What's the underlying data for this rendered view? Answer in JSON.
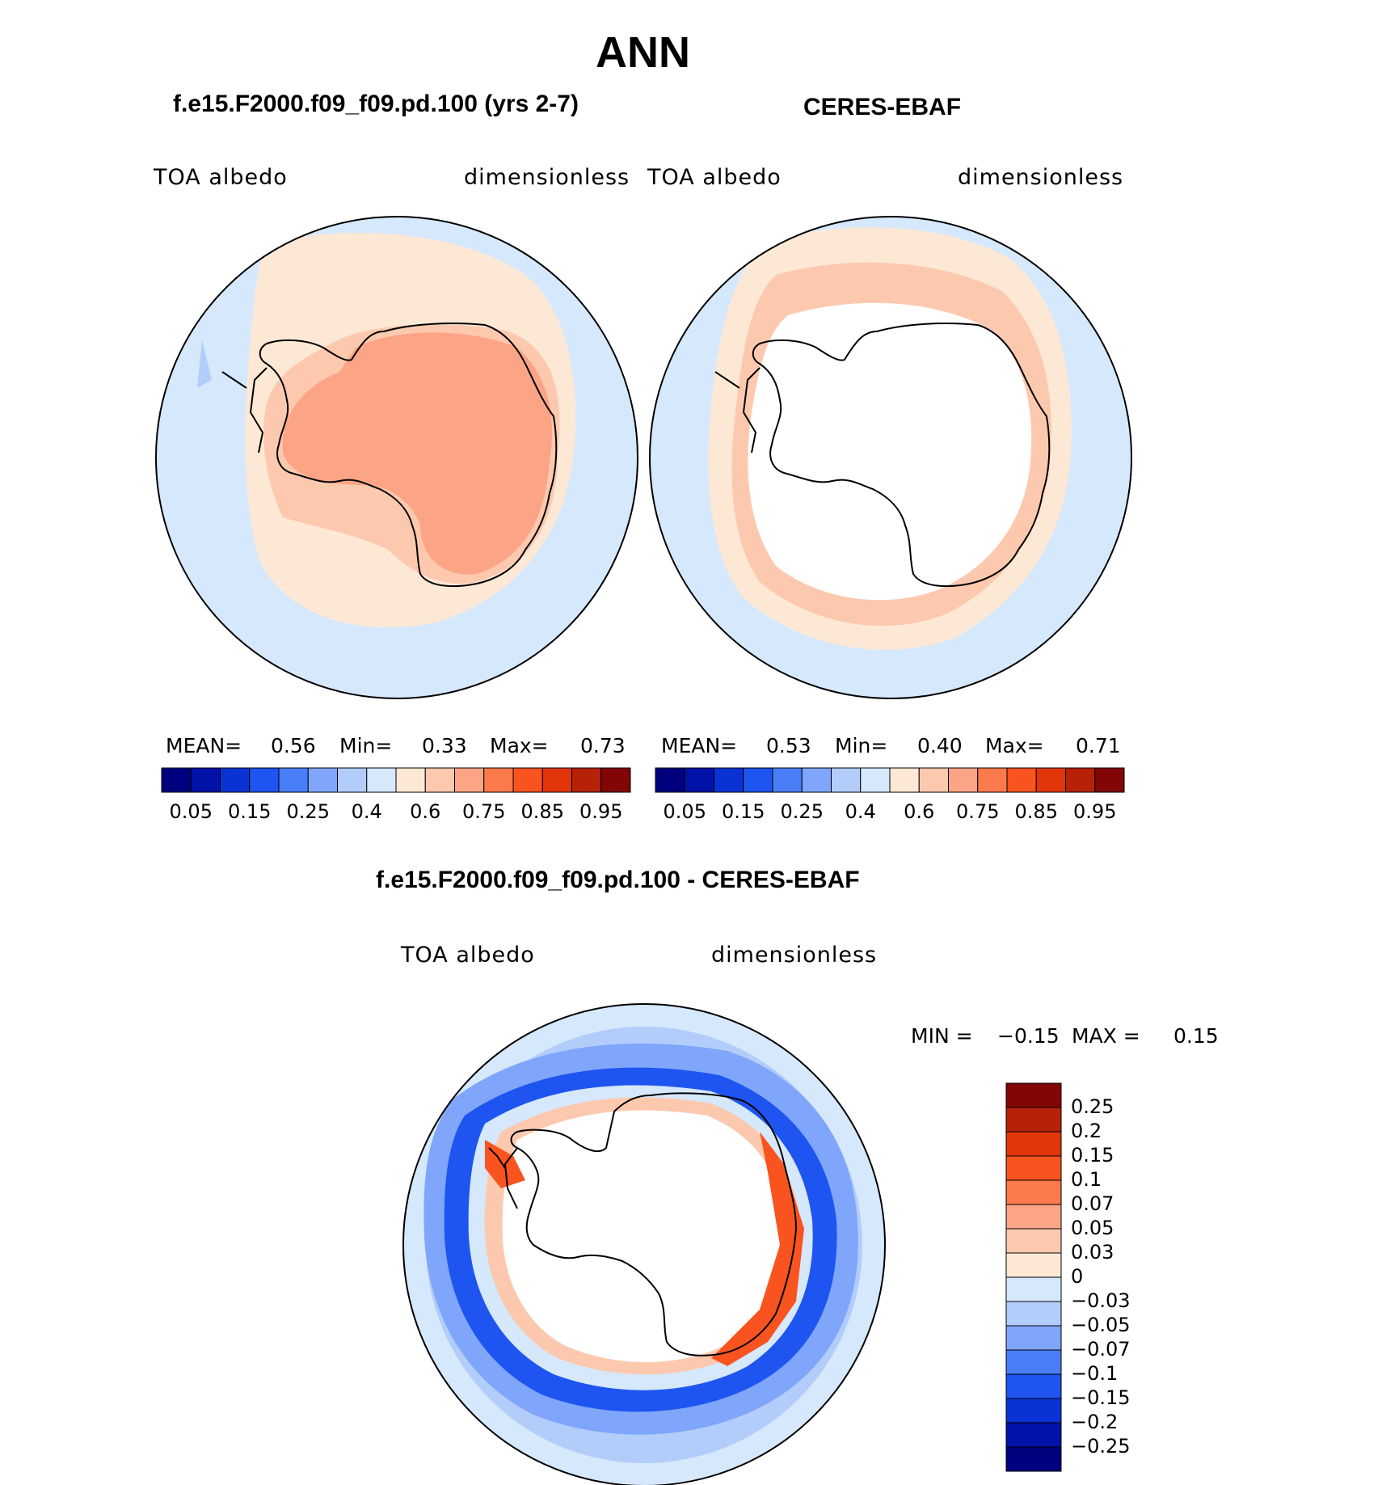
{
  "page": {
    "title": "ANN",
    "colors": {
      "ocean_low": "#d6e8fb",
      "land_outline": "#000000"
    }
  },
  "panels": [
    {
      "case_title": "f.e15.F2000.f09_f09.pd.100 (yrs 2-7)",
      "left_label": "TOA  albedo",
      "right_label": "dimensionless",
      "stats": {
        "mean_label": "MEAN=",
        "mean": "0.56",
        "min_label": "Min=",
        "min": "0.33",
        "max_label": "Max=",
        "max": "0.73"
      }
    },
    {
      "case_title": "CERES-EBAF",
      "left_label": "TOA  albedo",
      "right_label": "dimensionless",
      "stats": {
        "mean_label": "MEAN=",
        "mean": "0.53",
        "min_label": "Min=",
        "min": "0.40",
        "max_label": "Max=",
        "max": "0.71"
      }
    }
  ],
  "abs_colorbar": {
    "colors": [
      "#00007f",
      "#0012a8",
      "#0a33d6",
      "#1e55f0",
      "#4a7ef8",
      "#7fa6fb",
      "#b3cdfb",
      "#d6e8fb",
      "#fde8d6",
      "#fcc9af",
      "#fca586",
      "#fb7a4b",
      "#f9531f",
      "#e23509",
      "#b72107",
      "#830606"
    ],
    "tick_labels": [
      "0.05",
      "0.15",
      "0.25",
      "0.4",
      "0.6",
      "0.75",
      "0.85",
      "0.95"
    ]
  },
  "diff_panel": {
    "title": "f.e15.F2000.f09_f09.pd.100 - CERES-EBAF",
    "left_label": "TOA  albedo",
    "right_label": "dimensionless",
    "stats": {
      "min_label": "MIN  =",
      "min": "−0.15",
      "max_label": "MAX  =",
      "max": "0.15"
    }
  },
  "diff_colorbar": {
    "colors": [
      "#830606",
      "#b72107",
      "#e23509",
      "#f9531f",
      "#fb7a4b",
      "#fca586",
      "#fcc9af",
      "#fde8d6",
      "#d6e8fb",
      "#b3cdfb",
      "#7fa6fb",
      "#4a7ef8",
      "#1e55f0",
      "#0a33d6",
      "#0012a8",
      "#00007f"
    ],
    "tick_labels": [
      "0.25",
      "0.2",
      "0.15",
      "0.1",
      "0.07",
      "0.05",
      "0.03",
      "0",
      "−0.03",
      "−0.05",
      "−0.07",
      "−0.1",
      "−0.15",
      "−0.2",
      "−0.25"
    ]
  }
}
